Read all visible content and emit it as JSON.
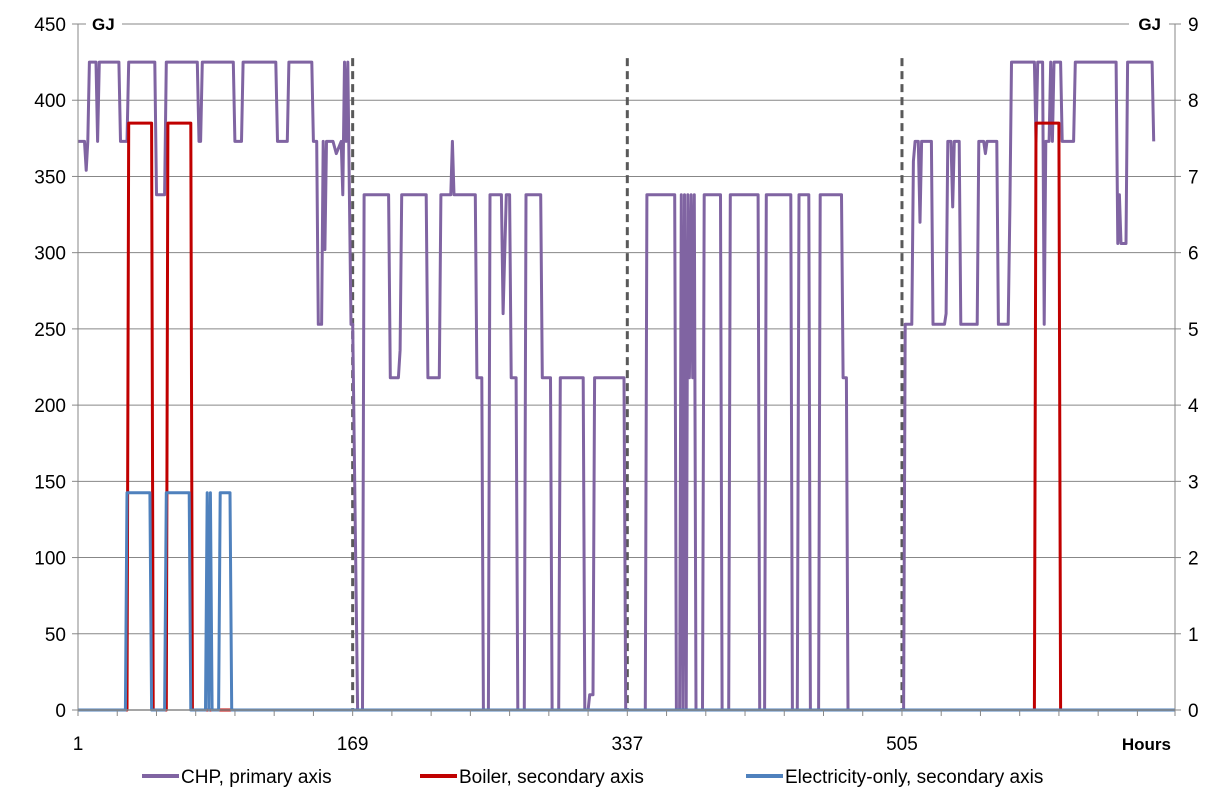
{
  "chart_data": {
    "type": "line",
    "primary_unit": "GJ",
    "secondary_unit": "GJ",
    "xlabel": "Hours",
    "x_ticks": [
      "1",
      "169",
      "337",
      "505"
    ],
    "x_tick_values": [
      1,
      169,
      337,
      505
    ],
    "xlim": [
      1,
      672
    ],
    "ylim_primary": [
      0,
      450
    ],
    "y_ticks_primary": [
      "0",
      "50",
      "100",
      "150",
      "200",
      "250",
      "300",
      "350",
      "400",
      "450"
    ],
    "y_tick_values_primary": [
      0,
      50,
      100,
      150,
      200,
      250,
      300,
      350,
      400,
      450
    ],
    "ylim_secondary": [
      0,
      9
    ],
    "y_ticks_secondary": [
      "0",
      "1",
      "2",
      "3",
      "4",
      "5",
      "6",
      "7",
      "8",
      "9"
    ],
    "y_tick_values_secondary": [
      0,
      1,
      2,
      3,
      4,
      5,
      6,
      7,
      8,
      9
    ],
    "grid": "horizontal",
    "legend_position": "bottom",
    "vertical_markers": [
      169,
      337,
      505
    ],
    "series": [
      {
        "name": "CHP, primary axis",
        "axis": "primary",
        "color": "#8064A2",
        "points": [
          [
            1,
            373
          ],
          [
            5,
            373
          ],
          [
            6,
            354
          ],
          [
            7,
            373
          ],
          [
            8,
            425
          ],
          [
            12,
            425
          ],
          [
            13,
            373
          ],
          [
            14,
            425
          ],
          [
            26,
            425
          ],
          [
            27,
            373
          ],
          [
            31,
            373
          ],
          [
            32,
            425
          ],
          [
            48,
            425
          ],
          [
            49,
            338
          ],
          [
            54,
            338
          ],
          [
            55,
            425
          ],
          [
            74,
            425
          ],
          [
            75,
            373
          ],
          [
            76,
            373
          ],
          [
            77,
            425
          ],
          [
            96,
            425
          ],
          [
            97,
            373
          ],
          [
            101,
            373
          ],
          [
            102,
            425
          ],
          [
            122,
            425
          ],
          [
            123,
            373
          ],
          [
            129,
            373
          ],
          [
            130,
            425
          ],
          [
            144,
            425
          ],
          [
            145,
            373
          ],
          [
            147,
            373
          ],
          [
            148,
            253
          ],
          [
            150,
            253
          ],
          [
            151,
            373
          ],
          [
            152,
            302
          ],
          [
            153,
            373
          ],
          [
            157,
            373
          ],
          [
            159,
            365
          ],
          [
            162,
            373
          ],
          [
            163,
            338
          ],
          [
            164,
            425
          ],
          [
            165,
            373
          ],
          [
            166,
            425
          ],
          [
            167,
            338
          ],
          [
            168,
            253
          ],
          [
            169,
            253
          ],
          [
            172,
            0
          ],
          [
            175,
            0
          ],
          [
            176,
            338
          ],
          [
            191,
            338
          ],
          [
            192,
            218
          ],
          [
            197,
            218
          ],
          [
            198,
            236
          ],
          [
            199,
            338
          ],
          [
            214,
            338
          ],
          [
            215,
            218
          ],
          [
            222,
            218
          ],
          [
            223,
            338
          ],
          [
            229,
            338
          ],
          [
            230,
            373
          ],
          [
            231,
            338
          ],
          [
            244,
            338
          ],
          [
            245,
            218
          ],
          [
            248,
            218
          ],
          [
            249,
            0
          ],
          [
            252,
            0
          ],
          [
            253,
            338
          ],
          [
            260,
            338
          ],
          [
            261,
            260
          ],
          [
            263,
            338
          ],
          [
            265,
            338
          ],
          [
            266,
            218
          ],
          [
            269,
            218
          ],
          [
            270,
            0
          ],
          [
            274,
            0
          ],
          [
            275,
            338
          ],
          [
            284,
            338
          ],
          [
            285,
            218
          ],
          [
            290,
            218
          ],
          [
            291,
            0
          ],
          [
            295,
            0
          ],
          [
            296,
            218
          ],
          [
            310,
            218
          ],
          [
            311,
            0
          ],
          [
            313,
            0
          ],
          [
            314,
            10
          ],
          [
            316,
            10
          ],
          [
            317,
            218
          ],
          [
            335,
            218
          ],
          [
            336,
            0
          ],
          [
            348,
            0
          ],
          [
            349,
            338
          ],
          [
            366,
            338
          ],
          [
            367,
            0
          ],
          [
            369,
            0
          ],
          [
            370,
            338
          ],
          [
            371,
            0
          ],
          [
            372,
            338
          ],
          [
            373,
            0
          ],
          [
            374,
            338
          ],
          [
            375,
            218
          ],
          [
            376,
            338
          ],
          [
            377,
            218
          ],
          [
            378,
            338
          ],
          [
            379,
            0
          ],
          [
            383,
            0
          ],
          [
            384,
            338
          ],
          [
            394,
            338
          ],
          [
            395,
            0
          ],
          [
            399,
            0
          ],
          [
            400,
            338
          ],
          [
            417,
            338
          ],
          [
            418,
            0
          ],
          [
            421,
            0
          ],
          [
            422,
            338
          ],
          [
            437,
            338
          ],
          [
            438,
            0
          ],
          [
            441,
            0
          ],
          [
            442,
            338
          ],
          [
            448,
            338
          ],
          [
            449,
            0
          ],
          [
            454,
            0
          ],
          [
            455,
            338
          ],
          [
            468,
            338
          ],
          [
            469,
            218
          ],
          [
            471,
            218
          ],
          [
            472,
            0
          ],
          [
            506,
            0
          ],
          [
            507,
            253
          ],
          [
            511,
            253
          ],
          [
            512,
            360
          ],
          [
            513,
            373
          ],
          [
            515,
            373
          ],
          [
            516,
            320
          ],
          [
            517,
            373
          ],
          [
            523,
            373
          ],
          [
            524,
            253
          ],
          [
            531,
            253
          ],
          [
            532,
            260
          ],
          [
            533,
            373
          ],
          [
            535,
            373
          ],
          [
            536,
            330
          ],
          [
            537,
            373
          ],
          [
            540,
            373
          ],
          [
            541,
            253
          ],
          [
            551,
            253
          ],
          [
            552,
            373
          ],
          [
            555,
            373
          ],
          [
            556,
            365
          ],
          [
            557,
            373
          ],
          [
            563,
            373
          ],
          [
            564,
            253
          ],
          [
            570,
            253
          ],
          [
            571,
            330
          ],
          [
            572,
            425
          ],
          [
            586,
            425
          ],
          [
            587,
            373
          ],
          [
            588,
            425
          ],
          [
            591,
            425
          ],
          [
            592,
            253
          ],
          [
            593,
            373
          ],
          [
            595,
            373
          ],
          [
            596,
            425
          ],
          [
            597,
            373
          ],
          [
            598,
            425
          ],
          [
            602,
            425
          ],
          [
            603,
            373
          ],
          [
            610,
            373
          ],
          [
            611,
            425
          ],
          [
            636,
            425
          ],
          [
            637,
            306
          ],
          [
            638,
            338
          ],
          [
            639,
            306
          ],
          [
            642,
            306
          ],
          [
            643,
            425
          ],
          [
            658,
            425
          ],
          [
            659,
            373
          ]
        ]
      },
      {
        "name": "Boiler, secondary axis",
        "axis": "secondary",
        "color": "#C00000",
        "points": [
          [
            1,
            0
          ],
          [
            31,
            0
          ],
          [
            32,
            7.7
          ],
          [
            46,
            7.7
          ],
          [
            47,
            0
          ],
          [
            55,
            0
          ],
          [
            56,
            7.7
          ],
          [
            70,
            7.7
          ],
          [
            71,
            0
          ],
          [
            586,
            0
          ],
          [
            587,
            7.7
          ],
          [
            601,
            7.7
          ],
          [
            602,
            0
          ],
          [
            672,
            0
          ]
        ]
      },
      {
        "name": "Electricity-only, secondary axis",
        "axis": "secondary",
        "color": "#4F81BD",
        "points": [
          [
            1,
            0
          ],
          [
            30,
            0
          ],
          [
            31,
            2.85
          ],
          [
            45,
            2.85
          ],
          [
            46,
            0
          ],
          [
            54,
            0
          ],
          [
            55,
            2.85
          ],
          [
            69,
            2.85
          ],
          [
            70,
            0
          ],
          [
            79,
            0
          ],
          [
            80,
            2.85
          ],
          [
            81,
            0
          ],
          [
            82,
            2.85
          ],
          [
            83,
            0
          ],
          [
            87,
            0
          ],
          [
            88,
            2.85
          ],
          [
            94,
            2.85
          ],
          [
            95,
            0
          ],
          [
            672,
            0
          ]
        ]
      }
    ]
  }
}
